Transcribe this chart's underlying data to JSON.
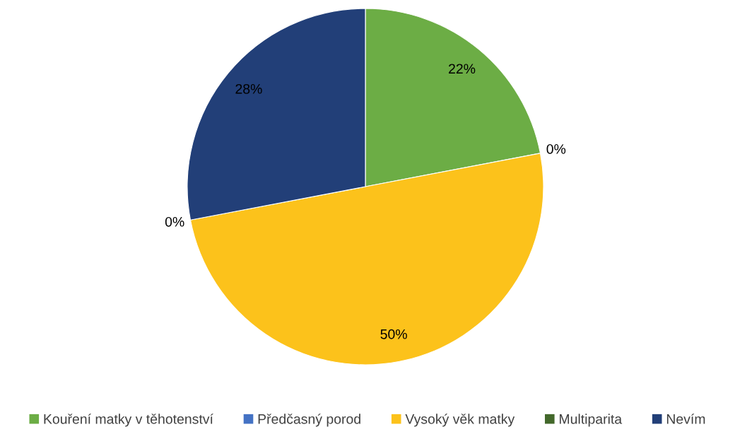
{
  "chart_data": {
    "type": "pie",
    "categories": [
      "Kouření matky v těhotenství",
      "Předčasný porod",
      "Vysoký věk matky",
      "Multiparita",
      "Nevím"
    ],
    "values": [
      22,
      0,
      50,
      0,
      28
    ],
    "colors": [
      "#6cad45",
      "#4472c4",
      "#fcc21b",
      "#43682b",
      "#223f78"
    ],
    "value_labels": [
      "22%",
      "0%",
      "50%",
      "0%",
      "28%"
    ],
    "legend": "bottom"
  }
}
